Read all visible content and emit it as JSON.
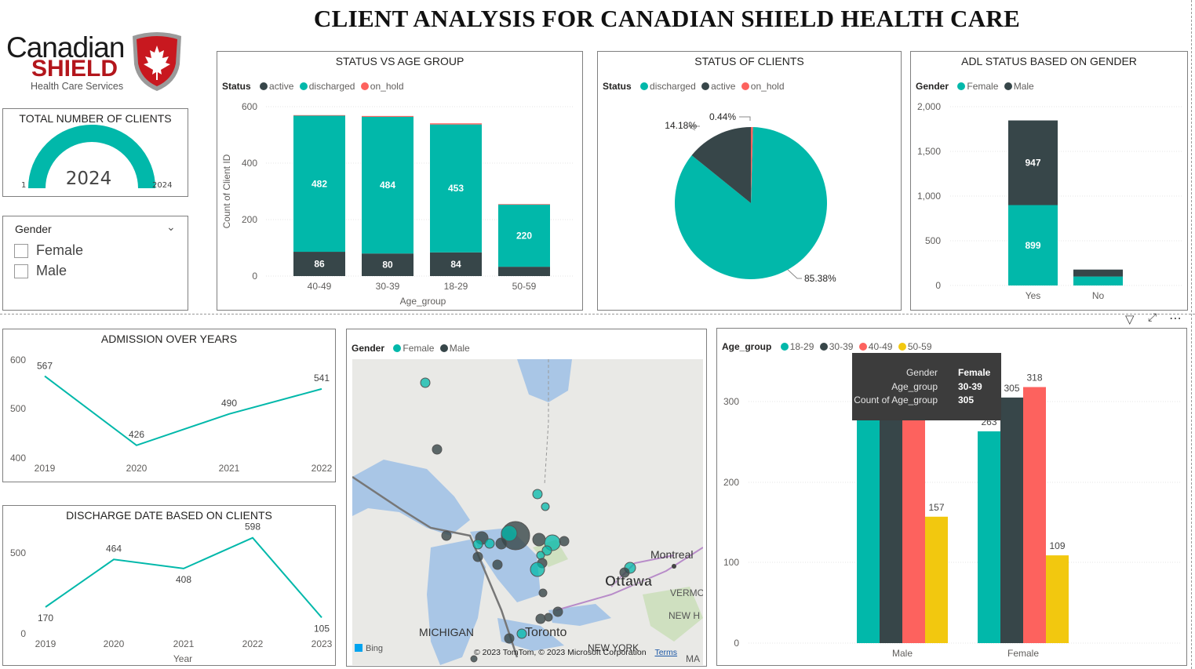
{
  "page": {
    "title": "CLIENT ANALYSIS FOR CANADIAN SHIELD HEALTH CARE"
  },
  "logo": {
    "line1": "Canadian",
    "line2": "SHIELD",
    "line3": "Health Care Services"
  },
  "colors": {
    "teal": "#01B8AA",
    "dark": "#374649",
    "red": "#FD625E",
    "yellow": "#F2C80F"
  },
  "kpi": {
    "title": "TOTAL NUMBER OF CLIENTS",
    "value": "2024",
    "min": "1",
    "max": "2024",
    "fill_fraction": 1.0
  },
  "gender_slicer": {
    "title": "Gender",
    "options": [
      "Female",
      "Male"
    ],
    "chevron": "chevron-down-icon"
  },
  "status_age": {
    "title": "STATUS VS AGE GROUP",
    "legend_title": "Status",
    "legend": [
      "active",
      "discharged",
      "on_hold"
    ],
    "xlabel": "Age_group",
    "ylabel": "Count of Client ID",
    "yticks": [
      "0",
      "200",
      "400",
      "600"
    ]
  },
  "status_clients": {
    "title": "STATUS OF CLIENTS",
    "legend_title": "Status",
    "legend": [
      "discharged",
      "active",
      "on_hold"
    ],
    "labels": [
      "85.38%",
      "14.18%",
      "0.44%"
    ]
  },
  "adl_gender": {
    "title": "ADL STATUS BASED ON GENDER",
    "legend_title": "Gender",
    "legend": [
      "Female",
      "Male"
    ],
    "yticks": [
      "0",
      "500",
      "1,000",
      "1,500",
      "2,000"
    ]
  },
  "admission": {
    "title": "ADMISSION OVER YEARS",
    "yticks": [
      "400",
      "500",
      "600"
    ]
  },
  "discharge": {
    "title": "DISCHARGE DATE BASED ON CLIENTS",
    "xlabel": "Year",
    "yticks": [
      "0",
      "500"
    ]
  },
  "map": {
    "legend_title": "Gender",
    "legend": [
      "Female",
      "Male"
    ],
    "place_labels": {
      "montreal": "Montreal",
      "ottawa": "Ottawa",
      "michigan": "MICHIGAN",
      "toronto": "Toronto",
      "newyork": "NEW YORK",
      "vermont": "VERMO",
      "newh": "NEW H",
      "ma": "MA"
    },
    "attribution": "© 2023 TomTom, © 2023 Microsoft Corporation",
    "terms": "Terms",
    "bing": "Bing"
  },
  "agegroup_gender": {
    "legend_title": "Age_group",
    "legend": [
      "18-29",
      "30-39",
      "40-49",
      "50-59"
    ],
    "yticks": [
      "0",
      "100",
      "200",
      "300"
    ],
    "toolbar": [
      "filter-icon",
      "focus-mode-icon",
      "more-options-icon"
    ],
    "tooltip": {
      "rows": [
        {
          "key": "Gender",
          "value": "Female"
        },
        {
          "key": "Age_group",
          "value": "30-39"
        },
        {
          "key": "Count of Age_group",
          "value": "305"
        }
      ]
    }
  },
  "chart_data": [
    {
      "type": "bar",
      "title": "STATUS VS AGE GROUP",
      "stacked": true,
      "categories": [
        "40-49",
        "30-39",
        "18-29",
        "50-59"
      ],
      "series": [
        {
          "name": "active",
          "values": [
            86,
            80,
            84,
            33
          ],
          "labels": [
            "86",
            "80",
            "84",
            ""
          ]
        },
        {
          "name": "discharged",
          "values": [
            482,
            484,
            453,
            220
          ],
          "labels": [
            "482",
            "484",
            "453",
            "220"
          ]
        },
        {
          "name": "on_hold",
          "values": [
            2,
            3,
            4,
            2
          ]
        }
      ],
      "xlabel": "Age_group",
      "ylabel": "Count of Client ID",
      "ylim": [
        0,
        600
      ]
    },
    {
      "type": "pie",
      "title": "STATUS OF CLIENTS",
      "slices": [
        {
          "name": "discharged",
          "percent": 85.38
        },
        {
          "name": "active",
          "percent": 14.18
        },
        {
          "name": "on_hold",
          "percent": 0.44
        }
      ]
    },
    {
      "type": "bar",
      "title": "ADL STATUS BASED ON GENDER",
      "stacked": true,
      "categories": [
        "Yes",
        "No"
      ],
      "series": [
        {
          "name": "Female",
          "values": [
            899,
            100
          ],
          "labels": [
            "899",
            ""
          ]
        },
        {
          "name": "Male",
          "values": [
            947,
            78
          ],
          "labels": [
            "947",
            ""
          ]
        }
      ],
      "ylim": [
        0,
        2000
      ]
    },
    {
      "type": "line",
      "title": "ADMISSION OVER YEARS",
      "x": [
        "2019",
        "2020",
        "2021",
        "2022"
      ],
      "values": [
        567,
        426,
        490,
        541
      ],
      "ylim": [
        400,
        600
      ]
    },
    {
      "type": "line",
      "title": "DISCHARGE DATE BASED ON CLIENTS",
      "x": [
        "2019",
        "2020",
        "2021",
        "2022",
        "2023"
      ],
      "values": [
        170,
        464,
        408,
        598,
        105
      ],
      "xlabel": "Year",
      "ylim": [
        0,
        650
      ]
    },
    {
      "type": "bar",
      "title": "",
      "categories": [
        "Male",
        "Female"
      ],
      "series": [
        {
          "name": "18-29",
          "values": [
            305,
            263
          ],
          "labels": [
            "",
            "263"
          ]
        },
        {
          "name": "30-39",
          "values": [
            290,
            305
          ],
          "labels": [
            "",
            "305"
          ]
        },
        {
          "name": "40-49",
          "values": [
            290,
            318
          ],
          "labels": [
            "",
            "318"
          ]
        },
        {
          "name": "50-59",
          "values": [
            157,
            109
          ],
          "labels": [
            "157",
            "109"
          ]
        }
      ],
      "ylim": [
        0,
        330
      ]
    }
  ]
}
